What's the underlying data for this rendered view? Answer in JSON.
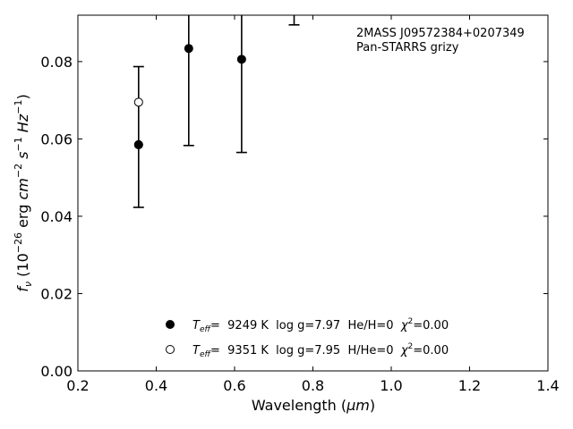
{
  "chart_data": {
    "type": "scatter",
    "title": "",
    "annotation": {
      "line1": "2MASS J09572384+0207349",
      "line2": "Pan-STARRS grizy"
    },
    "xlabel": {
      "text": "Wavelength (",
      "unit": "μm",
      "close": ")"
    },
    "ylabel": {
      "fv": "f",
      "nu": "ν",
      "open": " (10",
      "exp1": "−26",
      "erg": " erg ",
      "cm": "cm",
      "exp2": "−2",
      "s": " s",
      "exp3": "−1",
      "hz": " Hz",
      "exp4": "−1",
      "close": ")"
    },
    "xlim": [
      0.2,
      1.4
    ],
    "ylim": [
      0.0,
      0.092
    ],
    "x_ticks": [
      "0.2",
      "0.4",
      "0.6",
      "0.8",
      "1.0",
      "1.2",
      "1.4"
    ],
    "x_tick_values": [
      0.2,
      0.4,
      0.6,
      0.8,
      1.0,
      1.2,
      1.4
    ],
    "y_ticks": [
      "0.00",
      "0.02",
      "0.04",
      "0.06",
      "0.08"
    ],
    "y_tick_values": [
      0.0,
      0.02,
      0.04,
      0.06,
      0.08
    ],
    "observed": [
      {
        "x": 0.355,
        "y": 0.0585,
        "err_low": 0.0423,
        "err_high": 0.0787
      },
      {
        "x": 0.483,
        "y": 0.0834,
        "err_low": 0.0583,
        "err_high": 0.092
      },
      {
        "x": 0.618,
        "y": 0.0806,
        "err_low": 0.0565,
        "err_high": 0.092
      },
      {
        "x": 0.752,
        "y": null,
        "err_low": 0.0895,
        "err_high": 0.092
      }
    ],
    "series": [
      {
        "name": "He/H=0",
        "marker": "filled",
        "legend": {
          "T": "T",
          "eff": "eff",
          "rest": "=  9249 K  log g=7.97  He/H=0  ",
          "chi": "χ",
          "sq": "2",
          "val": "=0.00"
        },
        "points": [
          {
            "x": 0.355,
            "y": 0.0585
          }
        ]
      },
      {
        "name": "H/He=0",
        "marker": "open",
        "legend": {
          "T": "T",
          "eff": "eff",
          "rest": "=  9351 K  log g=7.95  H/He=0  ",
          "chi": "χ",
          "sq": "2",
          "val": "=0.00"
        },
        "points": [
          {
            "x": 0.355,
            "y": 0.0695
          }
        ]
      }
    ],
    "colors": {
      "marker": "#000000",
      "open_fill": "#ffffff"
    }
  }
}
